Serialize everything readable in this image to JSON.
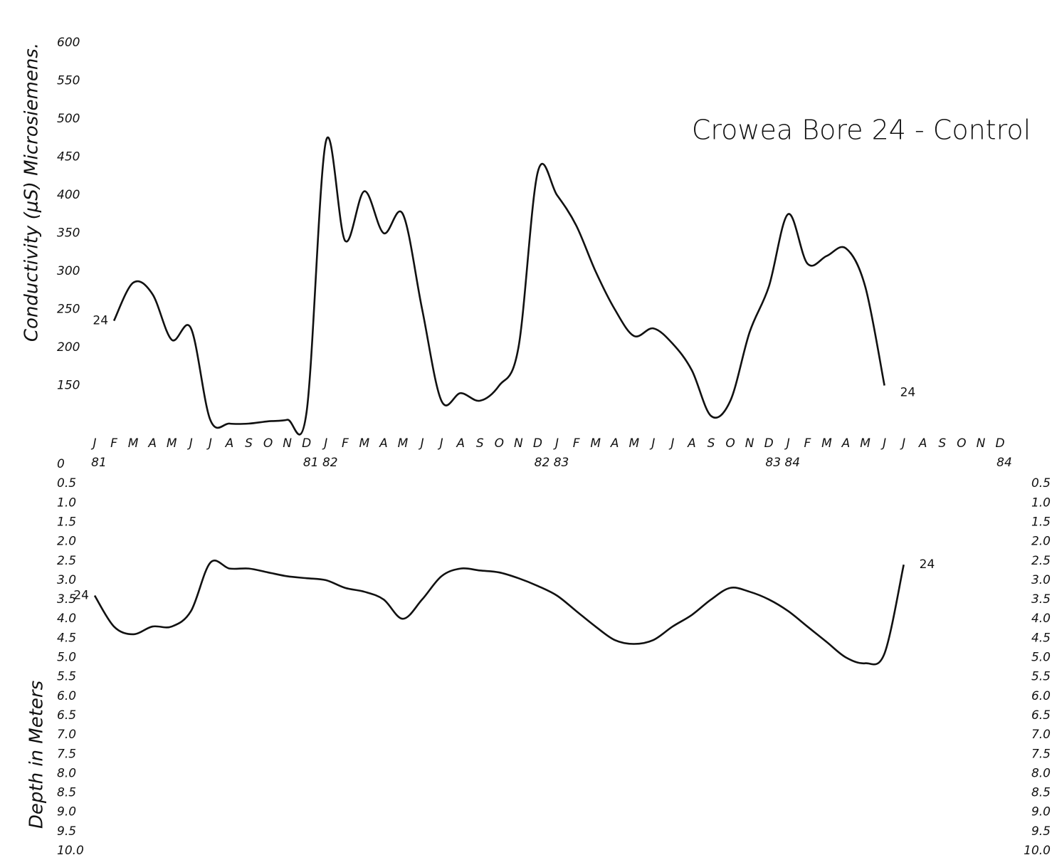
{
  "chart_data": [
    {
      "type": "line",
      "title": "Crowea Bore 24 - Control",
      "y_label": "Conductivity (μS) Microsiemens.",
      "categories": [
        "J",
        "F",
        "M",
        "A",
        "M",
        "J",
        "J",
        "A",
        "S",
        "O",
        "N",
        "D",
        "J",
        "F",
        "M",
        "A",
        "M",
        "J",
        "J",
        "A",
        "S",
        "O",
        "N",
        "D",
        "J",
        "F",
        "M",
        "A",
        "M",
        "J",
        "J",
        "A",
        "S",
        "O",
        "N",
        "D",
        "J",
        "F",
        "M",
        "A",
        "M",
        "J",
        "J",
        "A",
        "S",
        "O",
        "N",
        "D"
      ],
      "years": [
        "81",
        null,
        null,
        null,
        null,
        null,
        null,
        null,
        null,
        null,
        null,
        "81",
        "82",
        null,
        null,
        null,
        null,
        null,
        null,
        null,
        null,
        null,
        null,
        "82",
        "83",
        null,
        null,
        null,
        null,
        null,
        null,
        null,
        null,
        null,
        null,
        "83",
        "84",
        null,
        null,
        null,
        null,
        null,
        null,
        null,
        null,
        null,
        null,
        "84"
      ],
      "series": [
        {
          "name": "24",
          "color": "#111111",
          "values": [
            null,
            235,
            285,
            270,
            210,
            225,
            105,
            100,
            100,
            103,
            105,
            115,
            470,
            340,
            405,
            350,
            375,
            250,
            130,
            140,
            130,
            150,
            200,
            430,
            400,
            360,
            300,
            250,
            215,
            225,
            205,
            170,
            110,
            130,
            220,
            280,
            375,
            310,
            320,
            330,
            280,
            150,
            null,
            null,
            null,
            null,
            null,
            null
          ]
        }
      ],
      "ylim": [
        100,
        600
      ],
      "yticks": [
        150,
        200,
        250,
        300,
        350,
        400,
        450,
        500,
        550,
        600
      ]
    },
    {
      "type": "line",
      "y_label": "Depth in Meters",
      "inverted": true,
      "series": [
        {
          "name": "24",
          "color": "#111111",
          "values": [
            3.4,
            4.2,
            4.4,
            4.2,
            4.2,
            3.8,
            2.55,
            2.7,
            2.7,
            2.8,
            2.9,
            2.95,
            3.0,
            3.2,
            3.3,
            3.5,
            4.0,
            3.5,
            2.9,
            2.7,
            2.75,
            2.8,
            2.95,
            3.15,
            3.4,
            3.8,
            4.2,
            4.55,
            4.65,
            4.55,
            4.2,
            3.9,
            3.5,
            3.2,
            3.3,
            3.5,
            3.8,
            4.2,
            4.6,
            5.0,
            5.15,
            4.9,
            2.6,
            null,
            null,
            null,
            null,
            null
          ]
        }
      ],
      "ylim": [
        0,
        10
      ],
      "yticks": [
        0,
        {
          "value": 0.5,
          "label": "0.5"
        },
        {
          "value": 1,
          "label": "1.0"
        },
        {
          "value": 1.5,
          "label": "1.5"
        },
        {
          "value": 2,
          "label": "2.0"
        },
        {
          "value": 2.5,
          "label": "2.5"
        },
        {
          "value": 3,
          "label": "3.0"
        },
        {
          "value": 3.5,
          "label": "3.5"
        },
        {
          "value": 4,
          "label": "4.0"
        },
        {
          "value": 4.5,
          "label": "4.5"
        },
        {
          "value": 5,
          "label": "5.0"
        },
        {
          "value": 5.5,
          "label": "5.5"
        },
        {
          "value": 6,
          "label": "6.0"
        },
        {
          "value": 6.5,
          "label": "6.5"
        },
        {
          "value": 7,
          "label": "7.0"
        },
        {
          "value": 7.5,
          "label": "7.5"
        },
        {
          "value": 8,
          "label": "8.0"
        },
        {
          "value": 8.5,
          "label": "8.5"
        },
        {
          "value": 9,
          "label": "9.0"
        },
        {
          "value": 9.5,
          "label": "9.5"
        },
        {
          "value": 10,
          "label": "10.0"
        }
      ],
      "right_axis": true
    }
  ]
}
